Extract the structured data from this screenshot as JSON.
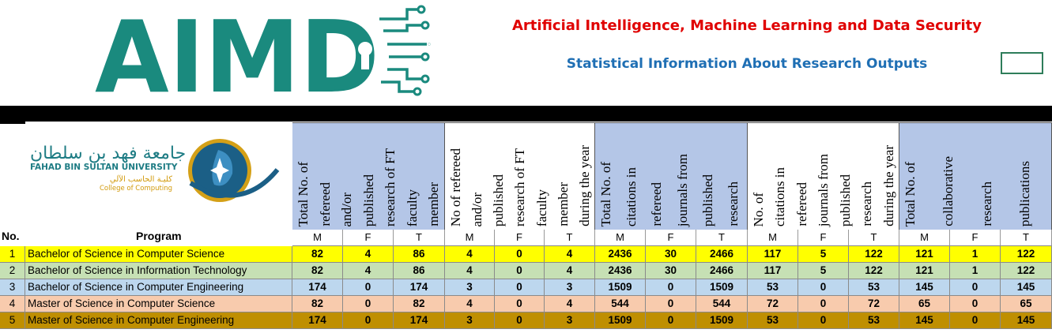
{
  "logo": {
    "text": "AIMD"
  },
  "titles": {
    "main": "Artificial Intelligence, Machine Learning and Data Security",
    "sub": "Statistical Information About Research Outputs"
  },
  "university": {
    "name_ar": "جامعة فهد بن سلطان",
    "name_en": "Fahad Bin Sultan University",
    "college_ar": "كليـة الحاسب الآلي",
    "college_en": "College of Computing"
  },
  "table": {
    "no_label": "No.",
    "program_label": "Program",
    "groups": [
      {
        "header": [
          "Total No. of",
          "refereed",
          "and/or",
          "published",
          "research of FT",
          "faculty",
          "member"
        ]
      },
      {
        "header": [
          "No of refereed",
          "and/or",
          "published",
          "research of FT",
          "faculty",
          "member",
          "during the year"
        ]
      },
      {
        "header": [
          "Total No. of",
          "citations in",
          "refereed",
          "journals from",
          "published",
          "research"
        ]
      },
      {
        "header": [
          "No. of",
          "citations in",
          "refereed",
          "journals from",
          "published",
          "research",
          "during the year"
        ]
      },
      {
        "header": [
          "Total No. of",
          "collaborative",
          "research",
          "publications"
        ]
      }
    ],
    "sub_headers": [
      "M",
      "F",
      "T"
    ],
    "row_colors": [
      "#ffff00",
      "#c6e0b4",
      "#bdd7ee",
      "#f8cbad",
      "#bf8f00"
    ],
    "rows": [
      {
        "no": "1",
        "program": "Bachelor of Science in Computer Science",
        "values": [
          "82",
          "4",
          "86",
          "4",
          "0",
          "4",
          "2436",
          "30",
          "2466",
          "117",
          "5",
          "122",
          "121",
          "1",
          "122"
        ]
      },
      {
        "no": "2",
        "program": "Bachelor of Science in Information Technology",
        "values": [
          "82",
          "4",
          "86",
          "4",
          "0",
          "4",
          "2436",
          "30",
          "2466",
          "117",
          "5",
          "122",
          "121",
          "1",
          "122"
        ]
      },
      {
        "no": "3",
        "program": "Bachelor of Science in Computer Engineering",
        "values": [
          "174",
          "0",
          "174",
          "3",
          "0",
          "3",
          "1509",
          "0",
          "1509",
          "53",
          "0",
          "53",
          "145",
          "0",
          "145"
        ]
      },
      {
        "no": "4",
        "program": "Master of Science in Computer Science",
        "values": [
          "82",
          "0",
          "82",
          "4",
          "0",
          "4",
          "544",
          "0",
          "544",
          "72",
          "0",
          "72",
          "65",
          "0",
          "65"
        ]
      },
      {
        "no": "5",
        "program": "Master of Science in Computer Engineering",
        "values": [
          "174",
          "0",
          "174",
          "3",
          "0",
          "3",
          "1509",
          "0",
          "1509",
          "53",
          "0",
          "53",
          "145",
          "0",
          "145"
        ]
      }
    ]
  }
}
